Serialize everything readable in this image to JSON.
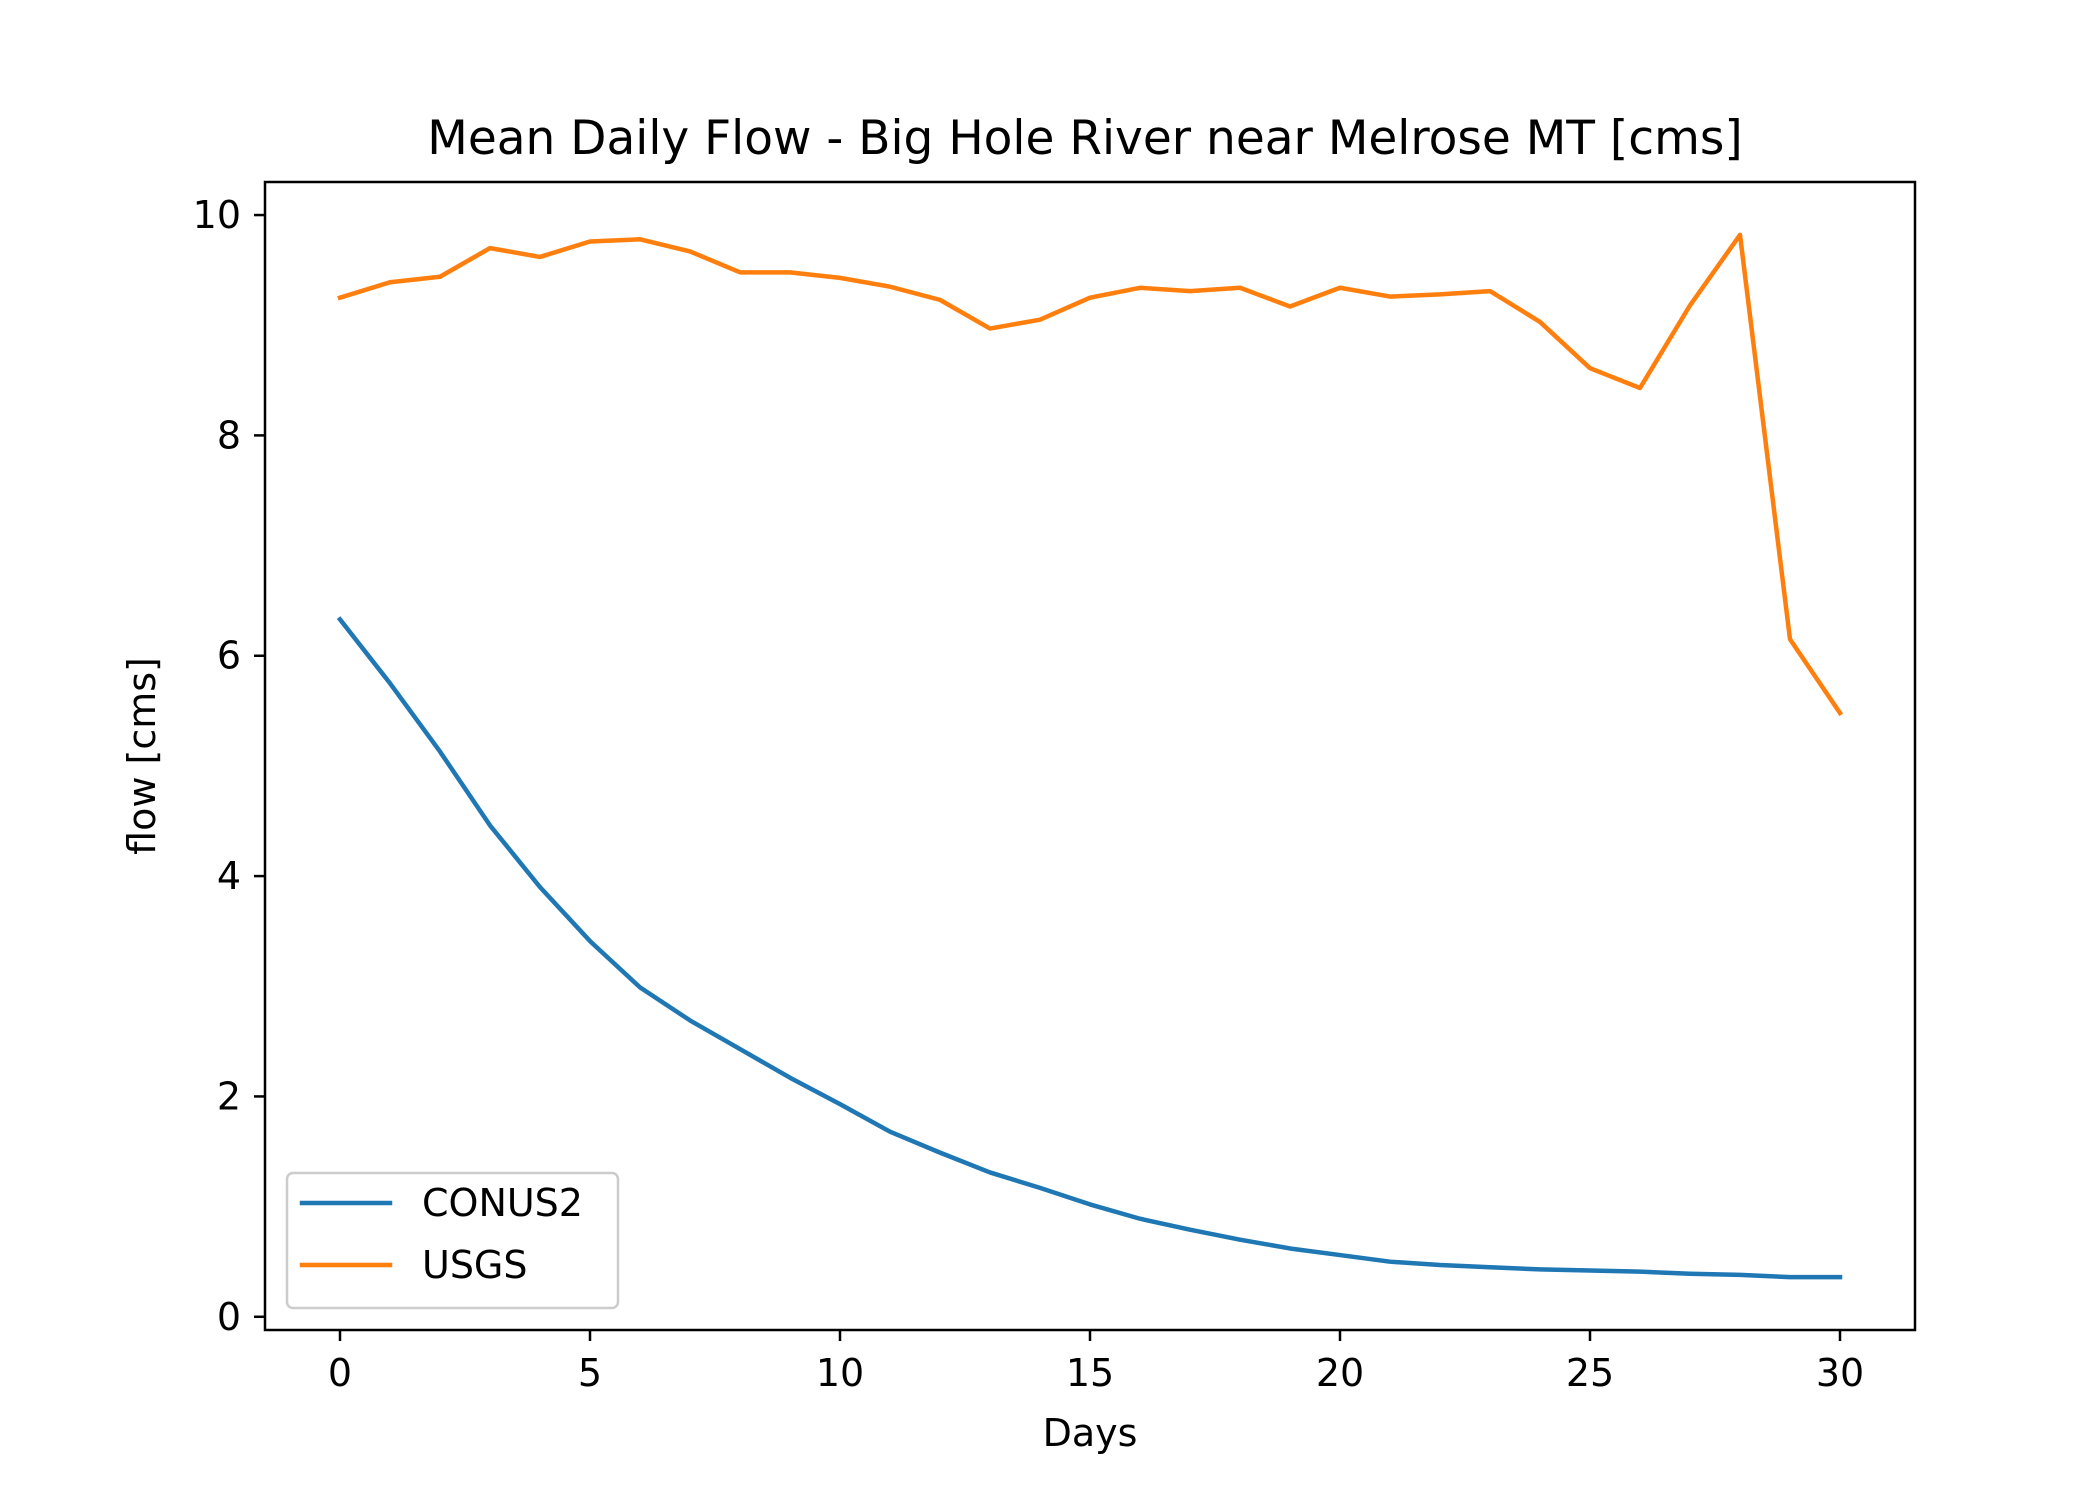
{
  "chart_data": {
    "type": "line",
    "title": "Mean Daily Flow - Big Hole River near Melrose MT [cms]",
    "xlabel": "Days",
    "ylabel": "flow [cms]",
    "xlim": [
      -1.5,
      31.5
    ],
    "ylim": [
      -0.12,
      10.3
    ],
    "xticks": [
      0,
      5,
      10,
      15,
      20,
      25,
      30
    ],
    "yticks": [
      0,
      2,
      4,
      6,
      8,
      10
    ],
    "grid": false,
    "legend_placement": "lower-left",
    "x": [
      0,
      1,
      2,
      3,
      4,
      5,
      6,
      7,
      8,
      9,
      10,
      11,
      12,
      13,
      14,
      15,
      16,
      17,
      18,
      19,
      20,
      21,
      22,
      23,
      24,
      25,
      26,
      27,
      28,
      29,
      30
    ],
    "series": [
      {
        "name": "CONUS2",
        "color": "#1f77b4",
        "values": [
          6.33,
          5.75,
          5.13,
          4.46,
          3.9,
          3.41,
          2.99,
          2.69,
          2.43,
          2.17,
          1.93,
          1.68,
          1.49,
          1.31,
          1.17,
          1.02,
          0.89,
          0.79,
          0.7,
          0.62,
          0.56,
          0.5,
          0.47,
          0.45,
          0.43,
          0.42,
          0.41,
          0.39,
          0.38,
          0.36,
          0.36
        ]
      },
      {
        "name": "USGS",
        "color": "#ff7f0e",
        "values": [
          9.25,
          9.39,
          9.44,
          9.7,
          9.62,
          9.76,
          9.78,
          9.67,
          9.48,
          9.48,
          9.43,
          9.35,
          9.23,
          8.97,
          9.05,
          9.25,
          9.34,
          9.31,
          9.34,
          9.17,
          9.34,
          9.26,
          9.28,
          9.31,
          9.03,
          8.61,
          8.43,
          9.18,
          9.82,
          6.15,
          5.48
        ]
      }
    ]
  }
}
